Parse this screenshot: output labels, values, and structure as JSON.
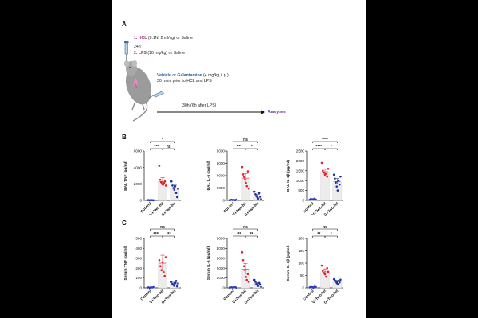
{
  "panel_a": {
    "letter": "A",
    "step1_num": "1.",
    "step1_agent": "HCL",
    "step1_rest": "(0.1N, 2 ml/kg) or Saline",
    "interval": "24h",
    "step2_num": "2.",
    "step2_agent": "LPS",
    "step2_rest": "(10 mg/kg) or Saline",
    "treat_agent1": "Vehicle",
    "treat_or": "or",
    "treat_agent2": "Galantamine",
    "treat_rest": "(4 mg/kg, i.p.)",
    "treat_line2": "30 mins prior to HCL and LPS",
    "timeline_label": "30h (6h after LPS)",
    "analyses": "Analyses"
  },
  "panel_b_letter": "B",
  "panel_c_letter": "C",
  "colors": {
    "control": "#2b3bbf",
    "vtwohit": "#e0232b",
    "gtwohit": "#1f2f9c",
    "bar_fill": "#ececec",
    "arrow": "#111111"
  },
  "chart_data": [
    {
      "type": "bar",
      "panel": "B",
      "ylabel": "BAL TNF (pg/ml)",
      "ylim": [
        0,
        6000
      ],
      "yticks": [
        0,
        2000,
        4000,
        6000
      ],
      "categories": [
        "Control",
        "V+Two-hit",
        "G+Two-hit"
      ],
      "means": [
        30,
        2300,
        1500
      ],
      "sem": [
        20,
        450,
        350
      ],
      "points": [
        [
          20,
          40,
          10,
          50,
          25,
          15
        ],
        [
          4200,
          2500,
          2200,
          2000,
          1900,
          2100,
          2300,
          1800
        ],
        [
          2300,
          1800,
          1500,
          1300,
          1700,
          900,
          400,
          1400
        ]
      ],
      "brackets": [
        {
          "pair": [
            0,
            2
          ],
          "label": "*"
        },
        {
          "pair": [
            0,
            1
          ],
          "label": "***"
        },
        {
          "pair": [
            1,
            2
          ],
          "label": "ns"
        }
      ]
    },
    {
      "type": "bar",
      "panel": "B",
      "ylabel": "BAL IL-6 (pg/ml)",
      "ylim": [
        0,
        8000
      ],
      "yticks": [
        0,
        2000,
        4000,
        6000,
        8000
      ],
      "categories": [
        "Control",
        "V+Two-hit",
        "G+Two-hit"
      ],
      "means": [
        80,
        3600,
        700
      ],
      "sem": [
        40,
        700,
        250
      ],
      "points": [
        [
          50,
          100,
          60,
          80,
          40,
          120
        ],
        [
          5400,
          4200,
          3800,
          3400,
          2800,
          2300,
          4700,
          1900
        ],
        [
          1400,
          1000,
          700,
          500,
          300,
          1200,
          600,
          200
        ]
      ],
      "brackets": [
        {
          "pair": [
            0,
            2
          ],
          "label": "ns"
        },
        {
          "pair": [
            0,
            1
          ],
          "label": "***"
        },
        {
          "pair": [
            1,
            2
          ],
          "label": "*"
        }
      ]
    },
    {
      "type": "bar",
      "panel": "B",
      "ylabel": "BAL IL-1β (pg/ml)",
      "ylim": [
        0,
        2500
      ],
      "yticks": [
        0,
        500,
        1000,
        1500,
        2000,
        2500
      ],
      "categories": [
        "Control",
        "V+Two-hit",
        "G+Two-hit"
      ],
      "means": [
        60,
        1450,
        950
      ],
      "sem": [
        30,
        130,
        150
      ],
      "points": [
        [
          30,
          80,
          50,
          60,
          90,
          40
        ],
        [
          1900,
          1500,
          1400,
          1300,
          1350,
          1200,
          1600
        ],
        [
          1300,
          1100,
          900,
          700,
          500,
          1000,
          800,
          1200
        ]
      ],
      "brackets": [
        {
          "pair": [
            0,
            2
          ],
          "label": "****"
        },
        {
          "pair": [
            0,
            1
          ],
          "label": "****"
        },
        {
          "pair": [
            1,
            2
          ],
          "label": "*"
        }
      ]
    },
    {
      "type": "bar",
      "panel": "C",
      "ylabel": "Serum TNF (pg/ml)",
      "ylim": [
        0,
        500
      ],
      "yticks": [
        0,
        100,
        200,
        300,
        400,
        500
      ],
      "categories": [
        "Control",
        "V+Two-hit",
        "G+Two-hit"
      ],
      "means": [
        5,
        250,
        40
      ],
      "sem": [
        3,
        80,
        15
      ],
      "points": [
        [
          3,
          5,
          2,
          6,
          4,
          8
        ],
        [
          280,
          220,
          180,
          260,
          160,
          120,
          310
        ],
        [
          60,
          40,
          30,
          20,
          50,
          70,
          15,
          45
        ]
      ],
      "brackets": [
        {
          "pair": [
            0,
            2
          ],
          "label": "ns"
        },
        {
          "pair": [
            0,
            1
          ],
          "label": "****"
        },
        {
          "pair": [
            1,
            2
          ],
          "label": "***"
        }
      ]
    },
    {
      "type": "bar",
      "panel": "C",
      "ylabel": "Serum IL-6 (pg/ml)",
      "ylim": [
        0,
        5000
      ],
      "yticks": [
        0,
        1000,
        2000,
        3000,
        4000,
        5000
      ],
      "categories": [
        "Control",
        "V+Two-hit",
        "G+Two-hit"
      ],
      "means": [
        50,
        1900,
        400
      ],
      "sem": [
        30,
        550,
        120
      ],
      "points": [
        [
          30,
          60,
          40,
          50,
          70,
          20
        ],
        [
          3600,
          2800,
          2200,
          1800,
          1100,
          800,
          1400,
          600
        ],
        [
          800,
          600,
          400,
          300,
          200,
          500,
          350,
          100
        ]
      ],
      "brackets": [
        {
          "pair": [
            0,
            2
          ],
          "label": "ns"
        },
        {
          "pair": [
            0,
            1
          ],
          "label": "**"
        },
        {
          "pair": [
            1,
            2
          ],
          "label": "**"
        }
      ]
    },
    {
      "type": "bar",
      "panel": "C",
      "ylabel": "Serum IL-1β (pg/ml)",
      "ylim": [
        0,
        200
      ],
      "yticks": [
        0,
        50,
        100,
        150,
        200
      ],
      "categories": [
        "Control",
        "V+Two-hit",
        "G+Two-hit"
      ],
      "means": [
        3,
        65,
        25
      ],
      "sem": [
        2,
        12,
        5
      ],
      "points": [
        [
          2,
          4,
          3,
          1,
          5,
          3
        ],
        [
          90,
          70,
          60,
          55,
          45,
          80,
          65
        ],
        [
          35,
          30,
          25,
          20,
          15,
          28,
          22,
          33
        ]
      ],
      "brackets": [
        {
          "pair": [
            0,
            2
          ],
          "label": "ns"
        },
        {
          "pair": [
            0,
            1
          ],
          "label": "**"
        },
        {
          "pair": [
            1,
            2
          ],
          "label": "*"
        }
      ]
    }
  ]
}
